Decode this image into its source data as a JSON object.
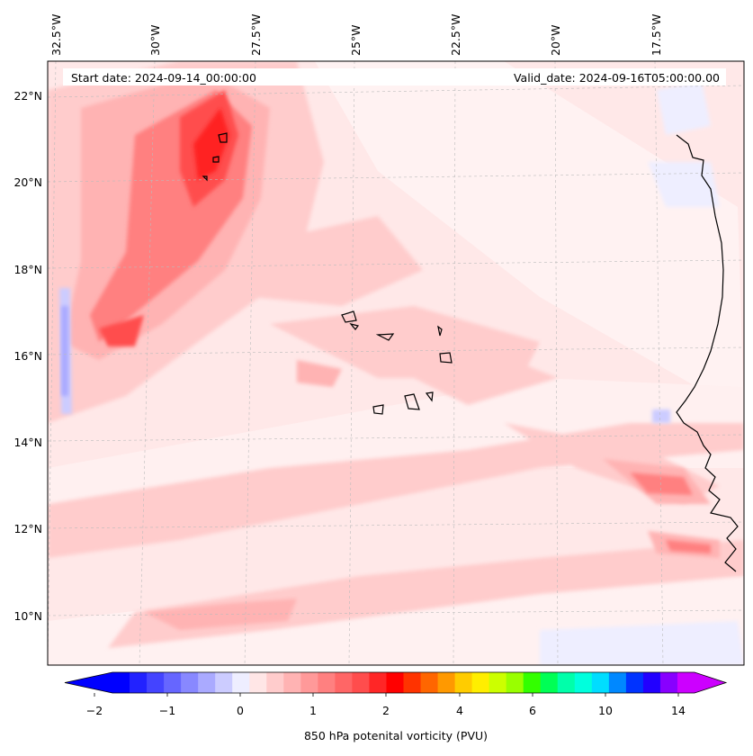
{
  "header": {
    "start_date": "Start date: 2024-09-14_00:00:00",
    "valid_date": "Valid_date: 2024-09-16T05:00:00.00"
  },
  "lon_labels": [
    "32.5°W",
    "30°W",
    "27.5°W",
    "25°W",
    "22.5°W",
    "20°W",
    "17.5°W"
  ],
  "lat_labels": [
    "22°N",
    "20°N",
    "18°N",
    "16°N",
    "14°N",
    "12°N",
    "10°N"
  ],
  "colorbar": {
    "label": "850 hPa potenital vorticity (PVU)",
    "tick_labels": [
      "−2",
      "−1",
      "0",
      "1",
      "2",
      "4",
      "6",
      "10",
      "14"
    ],
    "colors": [
      "#0000ff",
      "#2222ff",
      "#4444ff",
      "#6666ff",
      "#8888ff",
      "#aaaaff",
      "#ccccff",
      "#eeeeff",
      "#ffe6e6",
      "#ffcccc",
      "#ffb3b3",
      "#ff9999",
      "#ff8080",
      "#ff6666",
      "#ff4d4d",
      "#ff2626",
      "#ff0000",
      "#ff3300",
      "#ff6600",
      "#ff9900",
      "#ffcc00",
      "#ffee00",
      "#ccff00",
      "#99ff00",
      "#33ff00",
      "#00ff55",
      "#00ffaa",
      "#00ffdd",
      "#00ddff",
      "#0088ff",
      "#0033ff",
      "#2200ff",
      "#8800ff",
      "#cc00ff"
    ],
    "under_color": "#0000ff",
    "over_color": "#cc00ff"
  }
}
